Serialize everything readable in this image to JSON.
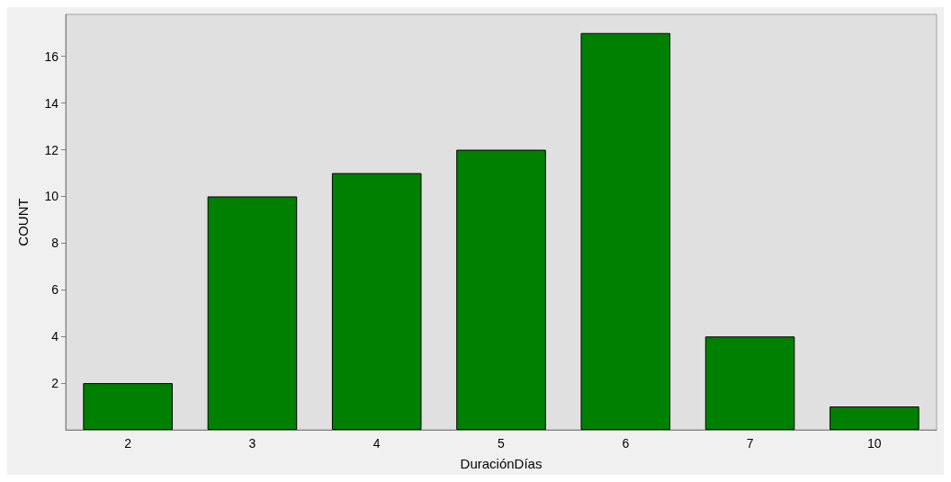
{
  "chart_data": {
    "type": "bar",
    "xlabel": "DuraciónDías",
    "ylabel": "COUNT",
    "categories": [
      "2",
      "3",
      "4",
      "5",
      "6",
      "7",
      "10"
    ],
    "values": [
      2,
      10,
      11,
      12,
      17,
      4,
      1
    ],
    "color": "#008000",
    "ylim": [
      0,
      17.8
    ],
    "yticks": [
      2,
      4,
      6,
      8,
      10,
      12,
      14,
      16
    ],
    "grid": false
  }
}
